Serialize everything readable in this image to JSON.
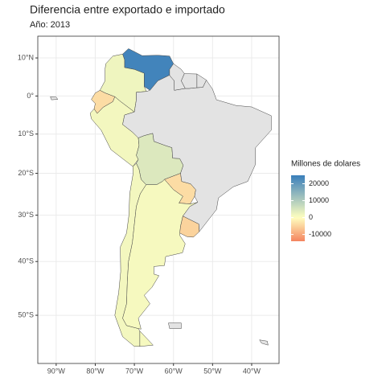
{
  "chart_data": {
    "type": "choropleth",
    "title": "Diferencia entre exportado e importado",
    "subtitle": "Año: 2013",
    "legend_title": "Millones de dolares",
    "values": [
      24000,
      2000,
      -4000,
      1500,
      4500,
      -4000,
      1500,
      1200,
      -5000,
      null,
      null,
      null,
      null,
      null,
      null,
      null
    ],
    "colors": {
      "low": "#f4845f",
      "mid": "#ffffbf",
      "high": "#3a7fbb",
      "na": "#e3e3e3"
    },
    "colorlim": [
      -14000,
      25000
    ],
    "colorticks": [
      20000,
      10000,
      0,
      -10000
    ],
    "xlim": [
      -94.7,
      -33
    ],
    "ylim": [
      -57.5,
      15.6
    ],
    "xticks": [
      {
        "value": -90,
        "label": "90°W"
      },
      {
        "value": -80,
        "label": "80°W"
      },
      {
        "value": -70,
        "label": "70°W"
      },
      {
        "value": -60,
        "label": "60°W"
      },
      {
        "value": -50,
        "label": "50°W"
      },
      {
        "value": -40,
        "label": "40°W"
      }
    ],
    "yticks": [
      {
        "value": 10,
        "label": "10°N"
      },
      {
        "value": 0,
        "label": "0°"
      },
      {
        "value": -10,
        "label": "10°S"
      },
      {
        "value": -20,
        "label": "20°S"
      },
      {
        "value": -30,
        "label": "30°S"
      },
      {
        "value": -40,
        "label": "40°S"
      },
      {
        "value": -50,
        "label": "50°S"
      }
    ],
    "grid": true
  }
}
